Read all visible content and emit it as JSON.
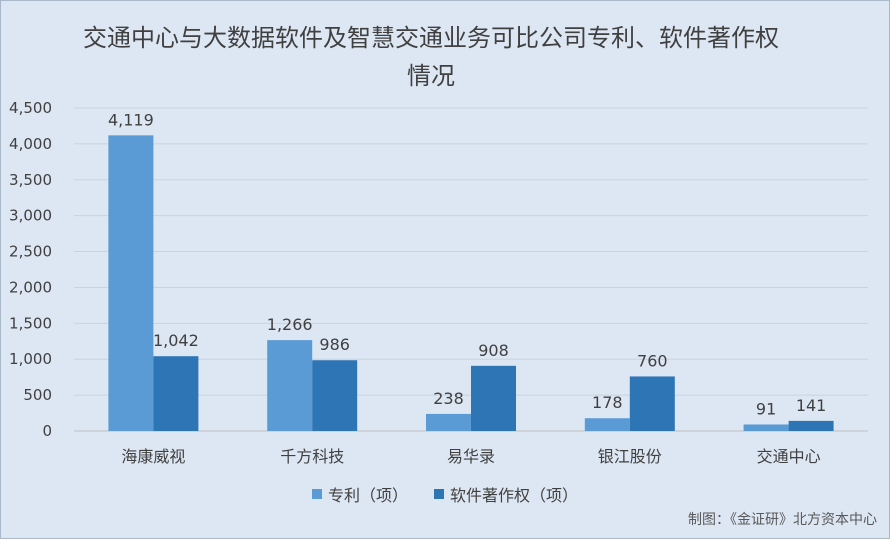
{
  "chart_data": {
    "type": "bar",
    "title": "交通中心与大数据软件及智慧交通业务可比公司专利、软件著作权情况",
    "categories": [
      "海康威视",
      "千方科技",
      "易华录",
      "银江股份",
      "交通中心"
    ],
    "series": [
      {
        "name": "专利（项）",
        "values": [
          4119,
          1266,
          238,
          178,
          91
        ],
        "color": "#5b9bd5"
      },
      {
        "name": "软件著作权（项）",
        "values": [
          1042,
          986,
          908,
          760,
          141
        ],
        "color": "#2e75b6"
      }
    ],
    "data_labels": [
      [
        "4,119",
        "1,266",
        "238",
        "178",
        "91"
      ],
      [
        "1,042",
        "986",
        "908",
        "760",
        "141"
      ]
    ],
    "ylim": [
      0,
      4500
    ],
    "yticks": [
      0,
      500,
      1000,
      1500,
      2000,
      2500,
      3000,
      3500,
      4000,
      4500
    ],
    "ytick_labels": [
      "0",
      "500",
      "1,000",
      "1,500",
      "2,000",
      "2,500",
      "3,000",
      "3,500",
      "4,000",
      "4,500"
    ],
    "grid": true,
    "legend_position": "bottom",
    "xlabel": "",
    "ylabel": ""
  },
  "source_note": "制图：《金证研》北方资本中心"
}
